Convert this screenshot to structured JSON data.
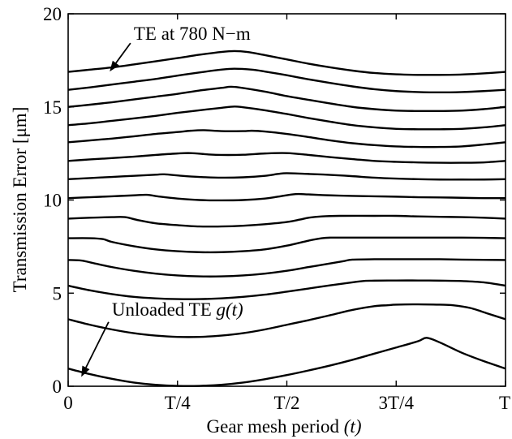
{
  "chart_data": {
    "type": "line",
    "xlabel": "Gear mesh period",
    "xlabel_var": "(t)",
    "ylabel": "Transmission Error [μm]",
    "xlim": [
      0,
      1
    ],
    "ylim": [
      0,
      20
    ],
    "x_ticks": [
      {
        "value": 0,
        "label": "0"
      },
      {
        "value": 0.25,
        "label": "T/4"
      },
      {
        "value": 0.5,
        "label": "T/2"
      },
      {
        "value": 0.75,
        "label": "3T/4"
      },
      {
        "value": 1,
        "label": "T"
      }
    ],
    "y_ticks": [
      {
        "value": 0,
        "label": "0"
      },
      {
        "value": 5,
        "label": "5"
      },
      {
        "value": 10,
        "label": "10"
      },
      {
        "value": 15,
        "label": "15"
      },
      {
        "value": 20,
        "label": "20"
      }
    ],
    "grid": false,
    "annotations": [
      {
        "text": "TE at 780 N−m",
        "points_to": [
          0.095,
          16.9
        ],
        "text_at": [
          0.15,
          18.6
        ]
      },
      {
        "text": "Unloaded TE ",
        "math": "g(t)",
        "points_to": [
          0.03,
          0.5
        ],
        "text_at": [
          0.1,
          3.8
        ]
      }
    ],
    "series": [
      {
        "x": [
          0,
          0.05,
          0.1,
          0.15,
          0.2,
          0.25,
          0.3,
          0.35,
          0.4,
          0.45,
          0.5,
          0.55,
          0.6,
          0.65,
          0.7,
          0.75,
          0.8,
          0.82,
          0.85,
          0.9,
          0.95,
          1.0
        ],
        "y": [
          0.95,
          0.65,
          0.4,
          0.2,
          0.08,
          0.02,
          0.02,
          0.08,
          0.2,
          0.38,
          0.6,
          0.85,
          1.12,
          1.42,
          1.75,
          2.08,
          2.42,
          2.6,
          2.35,
          1.8,
          1.35,
          0.95
        ]
      },
      {
        "x": [
          0,
          0.05,
          0.1,
          0.15,
          0.2,
          0.25,
          0.3,
          0.35,
          0.4,
          0.45,
          0.5,
          0.55,
          0.6,
          0.65,
          0.7,
          0.73,
          0.75,
          0.8,
          0.85,
          0.88,
          0.92,
          0.96,
          1.0
        ],
        "y": [
          3.6,
          3.3,
          3.05,
          2.85,
          2.72,
          2.65,
          2.65,
          2.72,
          2.85,
          3.05,
          3.3,
          3.55,
          3.82,
          4.1,
          4.3,
          4.35,
          4.38,
          4.4,
          4.38,
          4.35,
          4.2,
          3.9,
          3.6
        ]
      },
      {
        "x": [
          0,
          0.05,
          0.1,
          0.15,
          0.2,
          0.25,
          0.3,
          0.35,
          0.4,
          0.45,
          0.5,
          0.55,
          0.6,
          0.65,
          0.68,
          0.7,
          0.75,
          0.8,
          0.85,
          0.9,
          0.95,
          1.0
        ],
        "y": [
          5.4,
          5.15,
          4.95,
          4.8,
          4.72,
          4.68,
          4.68,
          4.72,
          4.8,
          4.92,
          5.08,
          5.25,
          5.42,
          5.58,
          5.66,
          5.67,
          5.68,
          5.68,
          5.67,
          5.65,
          5.58,
          5.4
        ]
      },
      {
        "x": [
          0,
          0.03,
          0.06,
          0.1,
          0.15,
          0.2,
          0.25,
          0.3,
          0.35,
          0.4,
          0.45,
          0.5,
          0.55,
          0.6,
          0.63,
          0.65,
          0.7,
          0.75,
          0.8,
          0.85,
          0.9,
          0.95,
          1.0
        ],
        "y": [
          6.78,
          6.75,
          6.6,
          6.4,
          6.2,
          6.05,
          5.95,
          5.9,
          5.9,
          5.95,
          6.05,
          6.2,
          6.4,
          6.6,
          6.72,
          6.8,
          6.82,
          6.82,
          6.82,
          6.82,
          6.8,
          6.79,
          6.78
        ]
      },
      {
        "x": [
          0,
          0.05,
          0.08,
          0.1,
          0.15,
          0.2,
          0.25,
          0.3,
          0.35,
          0.4,
          0.45,
          0.5,
          0.55,
          0.58,
          0.6,
          0.65,
          0.7,
          0.75,
          0.8,
          0.85,
          0.9,
          0.95,
          1.0
        ],
        "y": [
          7.95,
          7.95,
          7.9,
          7.75,
          7.52,
          7.35,
          7.25,
          7.2,
          7.2,
          7.25,
          7.35,
          7.55,
          7.82,
          7.95,
          7.98,
          7.98,
          7.98,
          7.98,
          7.98,
          7.98,
          7.98,
          7.97,
          7.95
        ]
      },
      {
        "x": [
          0,
          0.05,
          0.1,
          0.13,
          0.16,
          0.2,
          0.25,
          0.3,
          0.35,
          0.4,
          0.45,
          0.5,
          0.53,
          0.55,
          0.58,
          0.62,
          0.7,
          0.75,
          0.8,
          0.85,
          0.9,
          0.95,
          1.0
        ],
        "y": [
          9.0,
          9.05,
          9.08,
          9.08,
          8.92,
          8.75,
          8.65,
          8.58,
          8.58,
          8.62,
          8.7,
          8.82,
          8.95,
          9.05,
          9.12,
          9.15,
          9.15,
          9.15,
          9.12,
          9.1,
          9.08,
          9.05,
          9.0
        ]
      },
      {
        "x": [
          0,
          0.05,
          0.1,
          0.15,
          0.18,
          0.21,
          0.25,
          0.3,
          0.35,
          0.4,
          0.45,
          0.48,
          0.52,
          0.55,
          0.6,
          0.65,
          0.7,
          0.75,
          0.8,
          0.85,
          0.9,
          0.95,
          1.0
        ],
        "y": [
          10.1,
          10.15,
          10.2,
          10.25,
          10.28,
          10.18,
          10.08,
          10.0,
          9.98,
          10.0,
          10.08,
          10.18,
          10.32,
          10.3,
          10.25,
          10.22,
          10.2,
          10.18,
          10.15,
          10.14,
          10.12,
          10.1,
          10.1
        ]
      },
      {
        "x": [
          0,
          0.05,
          0.1,
          0.15,
          0.2,
          0.22,
          0.26,
          0.3,
          0.35,
          0.4,
          0.45,
          0.48,
          0.5,
          0.55,
          0.6,
          0.65,
          0.7,
          0.75,
          0.8,
          0.85,
          0.9,
          0.95,
          1.0
        ],
        "y": [
          11.12,
          11.18,
          11.24,
          11.3,
          11.36,
          11.38,
          11.3,
          11.24,
          11.2,
          11.22,
          11.3,
          11.4,
          11.44,
          11.4,
          11.35,
          11.28,
          11.2,
          11.15,
          11.12,
          11.1,
          11.1,
          11.1,
          11.12
        ]
      },
      {
        "x": [
          0,
          0.05,
          0.1,
          0.15,
          0.2,
          0.25,
          0.28,
          0.32,
          0.35,
          0.4,
          0.45,
          0.5,
          0.55,
          0.6,
          0.65,
          0.7,
          0.75,
          0.8,
          0.85,
          0.9,
          0.95,
          1.0
        ],
        "y": [
          12.1,
          12.18,
          12.25,
          12.33,
          12.42,
          12.5,
          12.52,
          12.45,
          12.42,
          12.43,
          12.5,
          12.52,
          12.42,
          12.3,
          12.2,
          12.1,
          12.05,
          12.02,
          12.0,
          12.0,
          12.02,
          12.1
        ]
      },
      {
        "x": [
          0,
          0.05,
          0.1,
          0.15,
          0.2,
          0.25,
          0.28,
          0.31,
          0.35,
          0.4,
          0.42,
          0.45,
          0.5,
          0.55,
          0.6,
          0.65,
          0.7,
          0.75,
          0.8,
          0.85,
          0.9,
          0.95,
          1.0
        ],
        "y": [
          13.1,
          13.2,
          13.3,
          13.42,
          13.55,
          13.65,
          13.72,
          13.75,
          13.7,
          13.7,
          13.72,
          13.68,
          13.55,
          13.38,
          13.2,
          13.05,
          12.95,
          12.88,
          12.85,
          12.85,
          12.88,
          12.98,
          13.1
        ]
      },
      {
        "x": [
          0,
          0.05,
          0.1,
          0.15,
          0.2,
          0.25,
          0.3,
          0.35,
          0.38,
          0.4,
          0.45,
          0.5,
          0.55,
          0.6,
          0.65,
          0.7,
          0.75,
          0.8,
          0.85,
          0.9,
          0.95,
          1.0
        ],
        "y": [
          14.02,
          14.12,
          14.25,
          14.38,
          14.52,
          14.68,
          14.82,
          14.95,
          15.02,
          14.98,
          14.82,
          14.62,
          14.4,
          14.2,
          14.02,
          13.9,
          13.82,
          13.8,
          13.8,
          13.82,
          13.9,
          14.02
        ]
      },
      {
        "x": [
          0,
          0.05,
          0.1,
          0.15,
          0.2,
          0.25,
          0.3,
          0.35,
          0.37,
          0.39,
          0.45,
          0.5,
          0.55,
          0.6,
          0.65,
          0.7,
          0.75,
          0.8,
          0.85,
          0.9,
          0.95,
          1.0
        ],
        "y": [
          15.0,
          15.12,
          15.25,
          15.4,
          15.55,
          15.7,
          15.88,
          16.02,
          16.08,
          16.05,
          15.82,
          15.58,
          15.38,
          15.18,
          15.0,
          14.88,
          14.8,
          14.78,
          14.78,
          14.8,
          14.88,
          15.0
        ]
      },
      {
        "x": [
          0,
          0.05,
          0.1,
          0.15,
          0.2,
          0.25,
          0.3,
          0.35,
          0.38,
          0.42,
          0.45,
          0.5,
          0.55,
          0.6,
          0.65,
          0.7,
          0.75,
          0.8,
          0.85,
          0.9,
          0.95,
          1.0
        ],
        "y": [
          15.92,
          16.05,
          16.2,
          16.35,
          16.5,
          16.68,
          16.85,
          17.0,
          17.05,
          17.0,
          16.9,
          16.7,
          16.48,
          16.28,
          16.1,
          15.95,
          15.85,
          15.8,
          15.78,
          15.8,
          15.85,
          15.92
        ]
      },
      {
        "x": [
          0,
          0.05,
          0.1,
          0.15,
          0.2,
          0.25,
          0.3,
          0.35,
          0.38,
          0.41,
          0.45,
          0.5,
          0.55,
          0.6,
          0.65,
          0.7,
          0.75,
          0.8,
          0.85,
          0.9,
          0.95,
          1.0
        ],
        "y": [
          16.88,
          17.0,
          17.12,
          17.28,
          17.45,
          17.62,
          17.8,
          17.95,
          18.0,
          17.95,
          17.78,
          17.55,
          17.32,
          17.12,
          16.95,
          16.82,
          16.75,
          16.72,
          16.72,
          16.74,
          16.8,
          16.88
        ]
      }
    ]
  }
}
